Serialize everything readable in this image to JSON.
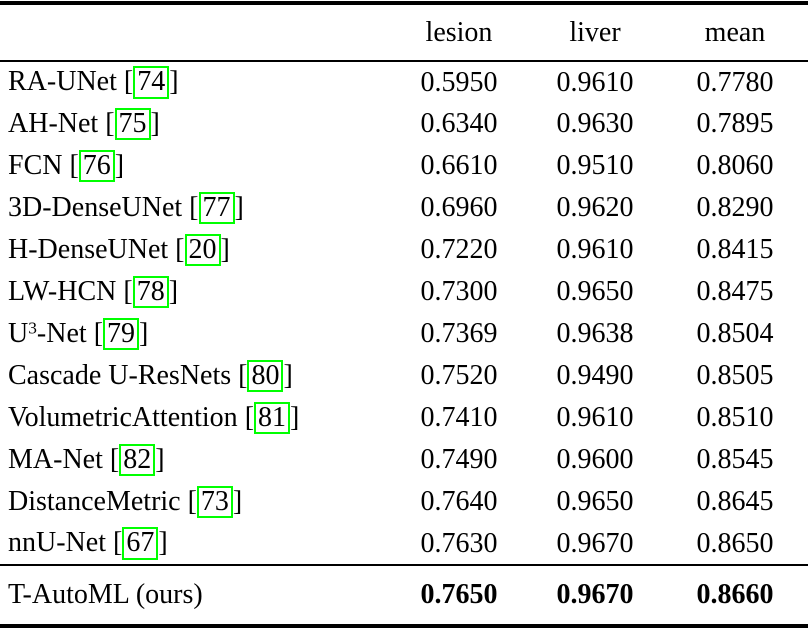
{
  "table": {
    "columns": [
      "lesion",
      "liver",
      "mean"
    ],
    "rows": [
      {
        "method": [
          {
            "text": "RA-UNet"
          }
        ],
        "ref": "74",
        "values": [
          "0.5950",
          "0.9610",
          "0.7780"
        ]
      },
      {
        "method": [
          {
            "text": "AH-Net"
          }
        ],
        "ref": "75",
        "values": [
          "0.6340",
          "0.9630",
          "0.7895"
        ]
      },
      {
        "method": [
          {
            "text": "FCN"
          }
        ],
        "ref": "76",
        "values": [
          "0.6610",
          "0.9510",
          "0.8060"
        ]
      },
      {
        "method": [
          {
            "text": "3D-DenseUNet"
          }
        ],
        "ref": "77",
        "values": [
          "0.6960",
          "0.9620",
          "0.8290"
        ]
      },
      {
        "method": [
          {
            "text": "H-DenseUNet"
          }
        ],
        "ref": "20",
        "values": [
          "0.7220",
          "0.9610",
          "0.8415"
        ]
      },
      {
        "method": [
          {
            "text": "LW-HCN"
          }
        ],
        "ref": "78",
        "values": [
          "0.7300",
          "0.9650",
          "0.8475"
        ]
      },
      {
        "method": [
          {
            "text": "U"
          },
          {
            "text": "3",
            "sup": true
          },
          {
            "text": "-Net"
          }
        ],
        "ref": "79",
        "values": [
          "0.7369",
          "0.9638",
          "0.8504"
        ]
      },
      {
        "method": [
          {
            "text": "Cascade U-ResNets"
          }
        ],
        "ref": "80",
        "values": [
          "0.7520",
          "0.9490",
          "0.8505"
        ]
      },
      {
        "method": [
          {
            "text": "VolumetricAttention"
          }
        ],
        "ref": "81",
        "values": [
          "0.7410",
          "0.9610",
          "0.8510"
        ]
      },
      {
        "method": [
          {
            "text": "MA-Net"
          }
        ],
        "ref": "82",
        "values": [
          "0.7490",
          "0.9600",
          "0.8545"
        ]
      },
      {
        "method": [
          {
            "text": "DistanceMetric"
          }
        ],
        "ref": "73",
        "values": [
          "0.7640",
          "0.9650",
          "0.8645"
        ]
      },
      {
        "method": [
          {
            "text": "nnU-Net"
          }
        ],
        "ref": "67",
        "values": [
          "0.7630",
          "0.9670",
          "0.8650"
        ]
      }
    ],
    "final_row": {
      "method": [
        {
          "text": "T-AutoML (ours)"
        }
      ],
      "ref": null,
      "values": [
        "0.7650",
        "0.9670",
        "0.8660"
      ],
      "bold": true
    }
  },
  "colors": {
    "citation_box": "#00ff00",
    "text": "#000000",
    "background": "#ffffff"
  }
}
